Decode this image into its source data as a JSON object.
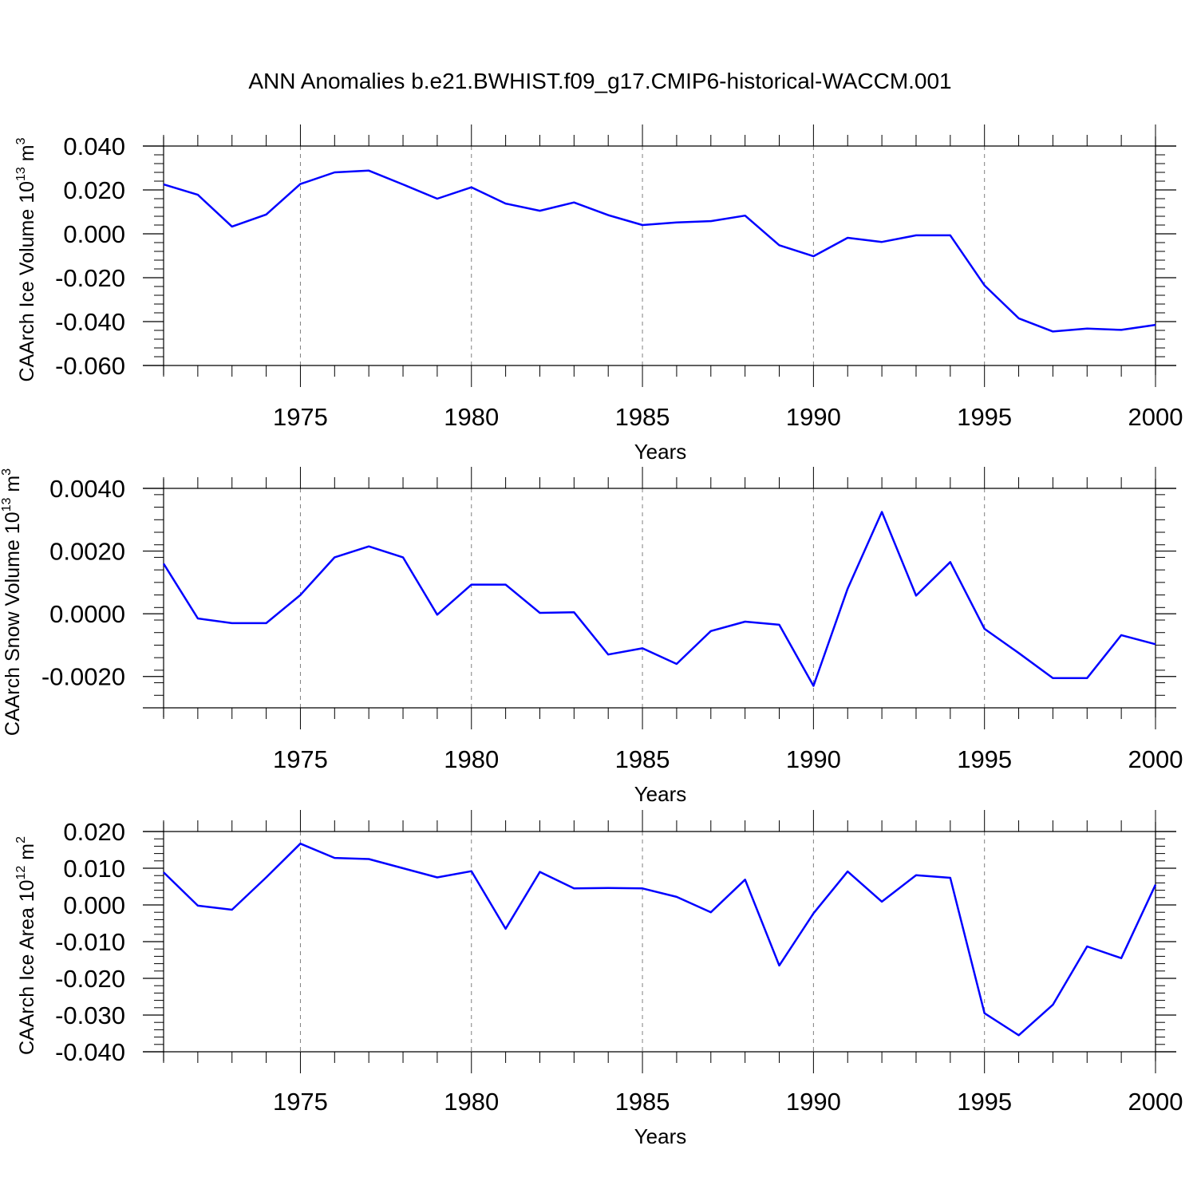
{
  "figure": {
    "title": "ANN Anomalies b.e21.BWHIST.f09_g17.CMIP6-historical-WACCM.001"
  },
  "colors": {
    "line": "#0000ff",
    "axes": "#000000",
    "grid": "#808080"
  },
  "chart_data": [
    {
      "type": "line",
      "ylabel": {
        "prefix": "CAArch Ice Volume 10",
        "exp": "13",
        "unit": " m",
        "unit_exp": "3"
      },
      "xlabel": "Years",
      "xlim": [
        1971,
        2000
      ],
      "ylim": [
        -0.06,
        0.04
      ],
      "y_ticks": [
        "0.040",
        "0.020",
        "0.000",
        "-0.020",
        "-0.040",
        "-0.060"
      ],
      "y_tick_values": [
        0.04,
        0.02,
        0.0,
        -0.02,
        -0.04,
        -0.06
      ],
      "x_ticks": [
        "1975",
        "1980",
        "1985",
        "1990",
        "1995",
        "2000"
      ],
      "grid": "dashed vertical lines at 5-year ticks",
      "series": [
        {
          "x": [
            1971,
            1972,
            1973,
            1974,
            1975,
            1976,
            1977,
            1978,
            1979,
            1980,
            1981,
            1982,
            1983,
            1984,
            1985,
            1986,
            1987,
            1988,
            1989,
            1990,
            1991,
            1992,
            1993,
            1994,
            1995,
            1996,
            1997,
            1998,
            1999,
            2000
          ],
          "values": [
            0.0225,
            0.0178,
            0.0033,
            0.0088,
            0.0227,
            0.028,
            0.0288,
            0.0225,
            0.016,
            0.0212,
            0.0138,
            0.0105,
            0.0143,
            0.0085,
            0.004,
            0.0052,
            0.0058,
            0.0083,
            -0.0052,
            -0.0102,
            -0.0018,
            -0.0037,
            -0.0007,
            -0.0007,
            -0.0235,
            -0.0385,
            -0.0445,
            -0.0432,
            -0.0438,
            -0.0415
          ]
        }
      ]
    },
    {
      "type": "line",
      "ylabel": {
        "prefix": "CAArch Snow Volume 10",
        "exp": "13",
        "unit": " m",
        "unit_exp": "3"
      },
      "xlabel": "Years",
      "xlim": [
        1971,
        2000
      ],
      "ylim": [
        -0.003,
        0.004
      ],
      "y_ticks": [
        "0.0040",
        "0.0020",
        "0.0000",
        "-0.0020"
      ],
      "y_tick_values": [
        0.004,
        0.002,
        0.0,
        -0.002
      ],
      "x_ticks": [
        "1975",
        "1980",
        "1985",
        "1990",
        "1995",
        "2000"
      ],
      "grid": "dashed vertical lines at 5-year ticks",
      "series": [
        {
          "x": [
            1971,
            1972,
            1973,
            1974,
            1975,
            1976,
            1977,
            1978,
            1979,
            1980,
            1981,
            1982,
            1983,
            1984,
            1985,
            1986,
            1987,
            1988,
            1989,
            1990,
            1991,
            1992,
            1993,
            1994,
            1995,
            1996,
            1997,
            1998,
            1999,
            2000
          ],
          "values": [
            0.0016,
            -0.00015,
            -0.0003,
            -0.0003,
            0.0006,
            0.0018,
            0.00215,
            0.0018,
            -3e-05,
            0.00093,
            0.00093,
            3e-05,
            5e-05,
            -0.0013,
            -0.0011,
            -0.0016,
            -0.00055,
            -0.00025,
            -0.00035,
            -0.0023,
            0.0008,
            0.00325,
            0.00058,
            0.00165,
            -0.00048,
            -0.00125,
            -0.00205,
            -0.00205,
            -0.00068,
            -0.00097
          ]
        }
      ]
    },
    {
      "type": "line",
      "ylabel": {
        "prefix": "CAArch Ice Area 10",
        "exp": "12",
        "unit": " m",
        "unit_exp": "2"
      },
      "xlabel": "Years",
      "xlim": [
        1971,
        2000
      ],
      "ylim": [
        -0.04,
        0.02
      ],
      "y_ticks": [
        "0.020",
        "0.010",
        "0.000",
        "-0.010",
        "-0.020",
        "-0.030",
        "-0.040"
      ],
      "y_tick_values": [
        0.02,
        0.01,
        0.0,
        -0.01,
        -0.02,
        -0.03,
        -0.04
      ],
      "x_ticks": [
        "1975",
        "1980",
        "1985",
        "1990",
        "1995",
        "2000"
      ],
      "grid": "dashed vertical lines at 5-year ticks",
      "series": [
        {
          "x": [
            1971,
            1972,
            1973,
            1974,
            1975,
            1976,
            1977,
            1978,
            1979,
            1980,
            1981,
            1982,
            1983,
            1984,
            1985,
            1986,
            1987,
            1988,
            1989,
            1990,
            1991,
            1992,
            1993,
            1994,
            1995,
            1996,
            1997,
            1998,
            1999,
            2000
          ],
          "values": [
            0.0089,
            -0.0002,
            -0.0013,
            0.0075,
            0.0167,
            0.0128,
            0.0125,
            0.01,
            0.0075,
            0.0092,
            -0.0065,
            0.009,
            0.0045,
            0.0046,
            0.0045,
            0.0022,
            -0.002,
            0.0069,
            -0.0165,
            -0.0023,
            0.0091,
            0.0009,
            0.0081,
            0.0074,
            -0.0295,
            -0.0355,
            -0.0272,
            -0.0113,
            -0.0145,
            0.0055
          ]
        }
      ]
    }
  ]
}
